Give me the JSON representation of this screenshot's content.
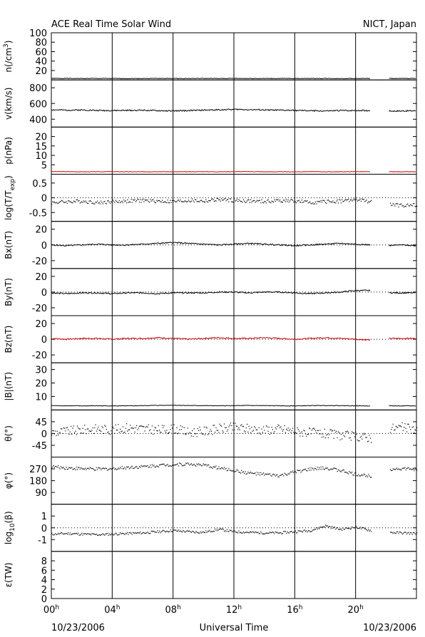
{
  "header": {
    "title": "ACE Real Time Solar Wind",
    "source": "NICT, Japan"
  },
  "footer": {
    "date_left": "10/23/2006",
    "axis_title": "Universal Time",
    "date_right": "10/23/2006"
  },
  "colors": {
    "ink": "#000000",
    "accent": "#cc0000"
  },
  "chart_data": {
    "type": "line",
    "x_unit": "hours UT",
    "xlim": [
      0,
      24
    ],
    "x_ticks": [
      {
        "h": 0,
        "hour": "00",
        "sup": "h"
      },
      {
        "h": 4,
        "hour": "04",
        "sup": "h"
      },
      {
        "h": 8,
        "hour": "08",
        "sup": "h"
      },
      {
        "h": 12,
        "hour": "12",
        "sup": "h"
      },
      {
        "h": 16,
        "hour": "16",
        "sup": "h"
      },
      {
        "h": 20,
        "hour": "20",
        "sup": "h"
      }
    ],
    "gaps": [
      [
        21.0,
        22.2
      ]
    ],
    "panels": [
      {
        "key": "n",
        "label_main": "n(/cm",
        "label_sup": "3",
        "label_tail": ")",
        "ylim": [
          0,
          100
        ],
        "ticks": [
          {
            "v": 20,
            "t": "20"
          },
          {
            "v": 40,
            "t": "40"
          },
          {
            "v": 60,
            "t": "60"
          },
          {
            "v": 80,
            "t": "80"
          },
          {
            "v": 100,
            "t": "100"
          }
        ],
        "color": "#000000",
        "zero": false,
        "series_type": "line",
        "base": 3,
        "amp": 0.6,
        "seed": 1,
        "values": [
          3.1,
          3.2,
          3.0,
          3.1,
          3.0,
          2.9,
          3.0,
          3.2,
          3.1,
          3.0,
          3.1,
          3.0,
          3.2,
          3.1,
          3.0,
          3.0,
          3.1,
          3.1,
          3.0,
          2.9,
          3.0,
          3.1,
          3.0,
          3.0,
          3.1
        ]
      },
      {
        "key": "v",
        "label_main": "v(km/s)",
        "ylim": [
          300,
          900
        ],
        "ticks": [
          {
            "v": 400,
            "t": "400"
          },
          {
            "v": 600,
            "t": "600"
          },
          {
            "v": 800,
            "t": "800"
          }
        ],
        "color": "#000000",
        "zero": false,
        "series_type": "line",
        "base": 0,
        "amp": 8,
        "seed": 2,
        "values": [
          520,
          515,
          518,
          512,
          510,
          512,
          515,
          508,
          505,
          510,
          515,
          520,
          525,
          522,
          518,
          515,
          512,
          508,
          505,
          510,
          512,
          508,
          505,
          505,
          508
        ]
      },
      {
        "key": "p",
        "label_main": "p(nPa)",
        "ylim": [
          0,
          25
        ],
        "ticks": [
          {
            "v": 5,
            "t": "5"
          },
          {
            "v": 10,
            "t": "10"
          },
          {
            "v": 15,
            "t": "15"
          },
          {
            "v": 20,
            "t": "20"
          }
        ],
        "color": "#cc0000",
        "zero": false,
        "series_type": "line",
        "base": 0,
        "amp": 0.12,
        "seed": 3,
        "values": [
          1.4,
          1.4,
          1.3,
          1.3,
          1.4,
          1.3,
          1.3,
          1.4,
          1.3,
          1.3,
          1.4,
          1.3,
          1.4,
          1.4,
          1.3,
          1.3,
          1.3,
          1.4,
          1.3,
          1.3,
          1.4,
          1.3,
          1.3,
          1.3,
          1.3
        ]
      },
      {
        "key": "t",
        "label_main": "log(T/T",
        "label_sub": "exp",
        "label_tail": ")",
        "ylim": [
          -0.8,
          0.8
        ],
        "ticks": [
          {
            "v": -0.5,
            "t": "-0.5"
          },
          {
            "v": 0,
            "t": "0"
          },
          {
            "v": 0.5,
            "t": "0.5"
          }
        ],
        "color": "#000000",
        "zero": true,
        "series_type": "scatter",
        "base": 0,
        "amp": 0.06,
        "seed": 4,
        "values": [
          -0.15,
          -0.12,
          -0.1,
          -0.15,
          -0.12,
          -0.1,
          -0.08,
          -0.1,
          -0.12,
          -0.08,
          -0.1,
          -0.05,
          -0.08,
          -0.1,
          -0.12,
          -0.08,
          -0.1,
          -0.15,
          -0.12,
          -0.1,
          -0.05,
          -0.12,
          -0.2,
          -0.25,
          -0.22
        ]
      },
      {
        "key": "bx",
        "label_main": "Bx(nT)",
        "ylim": [
          -30,
          30
        ],
        "ticks": [
          {
            "v": -20,
            "t": "-20"
          },
          {
            "v": 0,
            "t": "0"
          },
          {
            "v": 20,
            "t": "20"
          }
        ],
        "color": "#000000",
        "zero": true,
        "series_type": "line",
        "base": 0,
        "amp": 0.8,
        "seed": 5,
        "values": [
          0,
          -1,
          0,
          1,
          0,
          0,
          1,
          2,
          3,
          2,
          1,
          0,
          1,
          2,
          1,
          0,
          -1,
          0,
          1,
          2,
          1,
          0,
          -1,
          0,
          -1
        ]
      },
      {
        "key": "by",
        "label_main": "By(nT)",
        "ylim": [
          -30,
          30
        ],
        "ticks": [
          {
            "v": -20,
            "t": "-20"
          },
          {
            "v": 0,
            "t": "0"
          },
          {
            "v": 20,
            "t": "20"
          }
        ],
        "color": "#000000",
        "zero": true,
        "series_type": "line",
        "base": 0,
        "amp": 0.8,
        "seed": 6,
        "values": [
          -1,
          -2,
          -1,
          -1,
          -2,
          -1,
          -1,
          -2,
          -1,
          -1,
          -1,
          0,
          0,
          -1,
          0,
          0,
          -1,
          -2,
          -1,
          0,
          2,
          2,
          -1,
          -1,
          -1
        ]
      },
      {
        "key": "bz",
        "label_main": "Bz(nT)",
        "ylim": [
          -30,
          30
        ],
        "ticks": [
          {
            "v": -20,
            "t": "-20"
          },
          {
            "v": 0,
            "t": "0"
          },
          {
            "v": 20,
            "t": "20"
          }
        ],
        "color": "#cc0000",
        "zero": true,
        "series_type": "line",
        "base": 0,
        "amp": 0.8,
        "seed": 7,
        "values": [
          1,
          0,
          1,
          1,
          0,
          1,
          1,
          2,
          1,
          0,
          1,
          2,
          1,
          1,
          2,
          1,
          0,
          1,
          2,
          1,
          0,
          -1,
          1,
          1,
          1
        ]
      },
      {
        "key": "b",
        "label_main": "|B|(nT)",
        "ylim": [
          0,
          35
        ],
        "ticks": [
          {
            "v": 10,
            "t": "10"
          },
          {
            "v": 20,
            "t": "20"
          },
          {
            "v": 30,
            "t": "30"
          }
        ],
        "color": "#000000",
        "zero": false,
        "series_type": "line",
        "base": 0,
        "amp": 0.2,
        "seed": 8,
        "values": [
          3.2,
          3.1,
          3.0,
          3.1,
          3.0,
          3.0,
          3.2,
          3.4,
          3.5,
          3.3,
          3.2,
          3.1,
          3.2,
          3.3,
          3.2,
          3.1,
          3.0,
          3.2,
          3.3,
          3.2,
          3.1,
          3.0,
          3.1,
          3.0,
          3.0
        ]
      },
      {
        "key": "theta",
        "label_main": "θ(°)",
        "ylim": [
          -90,
          90
        ],
        "ticks": [
          {
            "v": -45,
            "t": "-45"
          },
          {
            "v": 0,
            "t": "0"
          },
          {
            "v": 45,
            "t": "45"
          }
        ],
        "color": "#000000",
        "zero": true,
        "series_type": "scatter",
        "base": 0,
        "amp": 18,
        "seed": 9,
        "values": [
          5,
          10,
          15,
          20,
          15,
          25,
          20,
          15,
          20,
          5,
          10,
          20,
          25,
          20,
          15,
          20,
          10,
          5,
          0,
          -5,
          -10,
          -15,
          20,
          25,
          15
        ]
      },
      {
        "key": "phi",
        "label_main": "φ(°)",
        "ylim": [
          0,
          360
        ],
        "ticks": [
          {
            "v": 90,
            "t": "90"
          },
          {
            "v": 180,
            "t": "180"
          },
          {
            "v": 270,
            "t": "270"
          }
        ],
        "color": "#000000",
        "zero": false,
        "series_type": "scatter",
        "base": 0,
        "amp": 12,
        "seed": 10,
        "values": [
          290,
          280,
          275,
          270,
          275,
          285,
          290,
          300,
          305,
          310,
          300,
          280,
          260,
          240,
          230,
          220,
          250,
          270,
          280,
          260,
          230,
          220,
          270,
          275,
          270
        ]
      },
      {
        "key": "beta",
        "label_main": "log",
        "label_sub": "10",
        "label_tail": "(β)",
        "ylim": [
          -2,
          2
        ],
        "ticks": [
          {
            "v": -1,
            "t": "-1"
          },
          {
            "v": 0,
            "t": "0"
          },
          {
            "v": 1,
            "t": "1"
          }
        ],
        "color": "#000000",
        "zero": true,
        "series_type": "scatter",
        "base": 0,
        "amp": 0.1,
        "seed": 11,
        "values": [
          -0.5,
          -0.45,
          -0.5,
          -0.55,
          -0.5,
          -0.45,
          -0.4,
          -0.3,
          -0.2,
          -0.3,
          -0.35,
          -0.1,
          -0.3,
          -0.35,
          -0.4,
          -0.4,
          -0.3,
          -0.2,
          0.2,
          -0.1,
          0.1,
          -0.2,
          -0.35,
          -0.4,
          -0.45
        ]
      },
      {
        "key": "eps",
        "label_main": "ε(TW)",
        "ylim": [
          0,
          10
        ],
        "ticks": [
          {
            "v": 0,
            "t": "0"
          },
          {
            "v": 2,
            "t": "2"
          },
          {
            "v": 4,
            "t": "4"
          },
          {
            "v": 6,
            "t": "6"
          },
          {
            "v": 8,
            "t": "8"
          }
        ],
        "color": "#000000",
        "zero": false,
        "series_type": "none",
        "values": []
      }
    ]
  }
}
